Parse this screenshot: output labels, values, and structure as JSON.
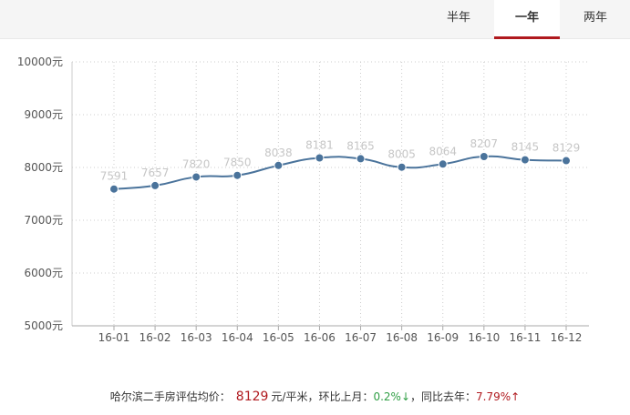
{
  "tabs": [
    {
      "label": "半年",
      "active": false
    },
    {
      "label": "一年",
      "active": true
    },
    {
      "label": "两年",
      "active": false
    }
  ],
  "colors": {
    "line": "#4a739b",
    "marker": "#4a739b",
    "grid": "#cccccc",
    "axis_text": "#555555",
    "data_label": "#c6c6c6",
    "accent": "#b0191e",
    "up_green": "#2f9e44"
  },
  "chart_data": {
    "type": "line",
    "title": "",
    "xlabel": "",
    "ylabel": "",
    "x": [
      "16-01",
      "16-02",
      "16-03",
      "16-04",
      "16-05",
      "16-06",
      "16-07",
      "16-08",
      "16-09",
      "16-10",
      "16-11",
      "16-12"
    ],
    "series": [
      {
        "values": [
          7591,
          7657,
          7820,
          7850,
          8038,
          8181,
          8165,
          8005,
          8064,
          8207,
          8145,
          8129
        ]
      }
    ],
    "ylim": [
      5000,
      10000
    ],
    "yticks": [
      5000,
      6000,
      7000,
      8000,
      9000,
      10000
    ],
    "ytick_suffix": "元",
    "grid": true,
    "grid_style": "dotted",
    "data_labels": true,
    "smooth": true
  },
  "footer": {
    "prefix": "哈尔滨二手房评估均价：",
    "avg_value": "8129",
    "avg_unit": "元/平米，环比上月：",
    "mom_value": "0.2%↓",
    "mid": "，同比去年：",
    "yoy_value": "7.79%↑"
  }
}
